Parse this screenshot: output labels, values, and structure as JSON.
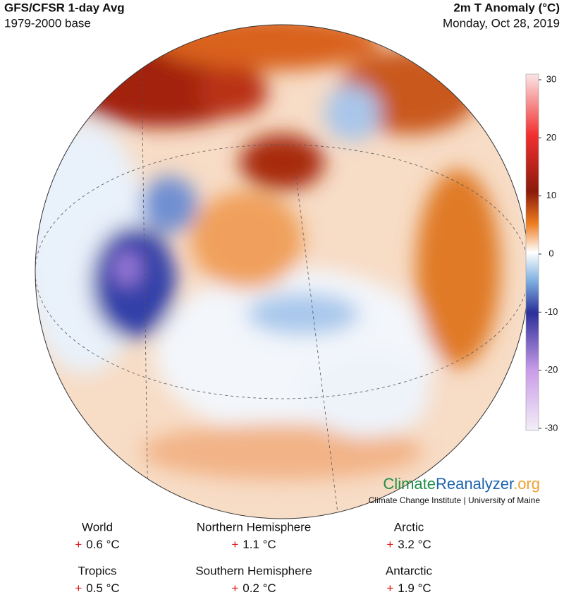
{
  "header": {
    "title": "GFS/CFSR 1-day Avg",
    "subtitle": "1979-2000 base",
    "variable": "2m T Anomaly (°C)",
    "date": "Monday, Oct 28, 2019"
  },
  "colorbar": {
    "range": [
      -30,
      30
    ],
    "ticks": [
      30,
      20,
      10,
      0,
      -10,
      -20,
      -30
    ]
  },
  "logo": {
    "part1": "Climate",
    "part2": "Reanalyzer",
    "part3": ".org",
    "affiliation": "Climate Change Institute | University of Maine"
  },
  "stats": [
    {
      "label": "World",
      "sign": "+",
      "value": "0.6 °C"
    },
    {
      "label": "Northern Hemisphere",
      "sign": "+",
      "value": "1.1 °C"
    },
    {
      "label": "Arctic",
      "sign": "+",
      "value": "3.2 °C"
    },
    {
      "label": "Tropics",
      "sign": "+",
      "value": "0.5 °C"
    },
    {
      "label": "Southern Hemisphere",
      "sign": "+",
      "value": "0.2 °C"
    },
    {
      "label": "Antarctic",
      "sign": "+",
      "value": "1.9 °C"
    }
  ]
}
